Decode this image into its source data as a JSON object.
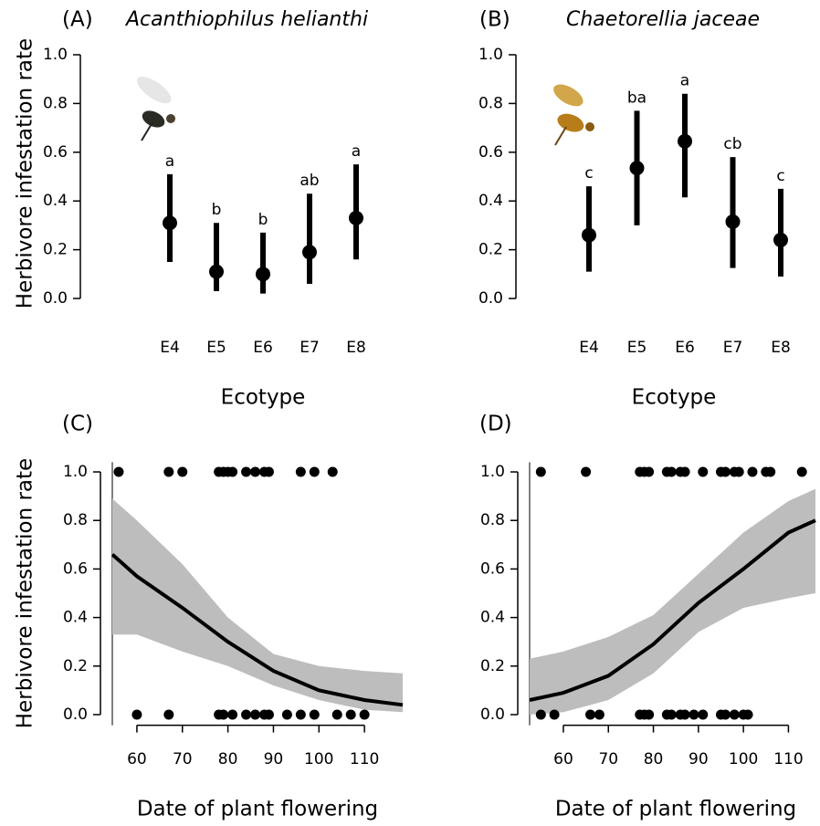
{
  "chart_data": [
    {
      "type": "errorbar",
      "panel_label": "(A)",
      "title": "Acanthiophilus helianthi",
      "ylabel": "Herbivore infestation rate",
      "xlabel": "Ecotype",
      "categories": [
        "E4",
        "E5",
        "E6",
        "E7",
        "E8"
      ],
      "values": [
        0.31,
        0.11,
        0.1,
        0.19,
        0.33
      ],
      "lower": [
        0.15,
        0.03,
        0.02,
        0.06,
        0.16
      ],
      "upper": [
        0.51,
        0.31,
        0.27,
        0.43,
        0.55
      ],
      "labels": [
        "a",
        "b",
        "b",
        "ab",
        "a"
      ],
      "color": "#000000",
      "ylim": [
        -0.04,
        1.04
      ],
      "yticks": [
        {
          "value": 0,
          "label": "0.0"
        },
        0.2,
        0.4,
        0.6,
        0.8,
        {
          "value": 1,
          "label": "1.0"
        }
      ]
    },
    {
      "type": "errorbar",
      "panel_label": "(B)",
      "title": "Chaetorellia jaceae",
      "xlabel": "Ecotype",
      "categories": [
        "E4",
        "E5",
        "E6",
        "E7",
        "E8"
      ],
      "values": [
        0.26,
        0.535,
        0.645,
        0.315,
        0.24
      ],
      "lower": [
        0.11,
        0.3,
        0.415,
        0.125,
        0.09
      ],
      "upper": [
        0.46,
        0.77,
        0.84,
        0.58,
        0.45
      ],
      "labels": [
        "c",
        "ba",
        "a",
        "cb",
        "c"
      ],
      "color": "#000000",
      "ylim": [
        -0.04,
        1.04
      ],
      "yticks": [
        {
          "value": 0,
          "label": "0.0"
        },
        0.2,
        0.4,
        0.6,
        0.8,
        {
          "value": 1,
          "label": "1.0"
        }
      ]
    },
    {
      "type": "scatter",
      "panel_label": "(C)",
      "ylabel": "Herbivore infestation rate",
      "xlabel": "Date of plant flowering",
      "scatter": {
        "x": [
          56,
          67,
          70,
          78,
          79,
          80,
          81,
          84,
          86,
          88,
          89,
          96,
          99,
          103,
          60,
          67,
          78,
          79,
          81,
          84,
          86,
          88,
          89,
          93,
          96,
          99,
          104,
          107,
          110
        ],
        "y": [
          1,
          1,
          1,
          1,
          1,
          1,
          1,
          1,
          1,
          1,
          1,
          1,
          1,
          1,
          0,
          0,
          0,
          0,
          0,
          0,
          0,
          0,
          0,
          0,
          0,
          0,
          0,
          0,
          0
        ]
      },
      "fit": {
        "x": [
          54.6,
          60,
          70,
          80,
          90,
          100,
          110,
          118.4
        ],
        "y": [
          0.66,
          0.57,
          0.44,
          0.3,
          0.18,
          0.1,
          0.06,
          0.04
        ],
        "lower": [
          0.33,
          0.33,
          0.26,
          0.2,
          0.12,
          0.06,
          0.02,
          0.01
        ],
        "upper": [
          0.89,
          0.8,
          0.62,
          0.4,
          0.25,
          0.2,
          0.18,
          0.17
        ]
      },
      "color": "#000000",
      "band_color": "#bdbdbd",
      "xlim": [
        54.6,
        118.4
      ],
      "xticks": [
        60,
        70,
        80,
        90,
        100,
        110
      ],
      "ylim": [
        -0.04,
        1.04
      ],
      "yticks": [
        {
          "value": 0,
          "label": "0.0"
        },
        0.2,
        0.4,
        0.6,
        0.8,
        {
          "value": 1,
          "label": "1.0"
        }
      ]
    },
    {
      "type": "scatter",
      "panel_label": "(D)",
      "xlabel": "Date of plant flowering",
      "scatter": {
        "x": [
          55,
          65,
          77,
          78,
          79,
          83,
          84,
          86,
          87,
          91,
          95,
          96,
          98,
          99,
          102,
          105,
          106,
          113,
          55,
          58,
          66,
          68,
          77,
          78,
          79,
          83,
          84,
          86,
          87,
          89,
          91,
          95,
          96,
          98,
          100,
          101
        ],
        "y": [
          1,
          1,
          1,
          1,
          1,
          1,
          1,
          1,
          1,
          1,
          1,
          1,
          1,
          1,
          1,
          1,
          1,
          1,
          0,
          0,
          0,
          0,
          0,
          0,
          0,
          0,
          0,
          0,
          0,
          0,
          0,
          0,
          0,
          0,
          0,
          0
        ]
      },
      "fit": {
        "x": [
          52.5,
          60,
          70,
          80,
          90,
          100,
          110,
          116
        ],
        "y": [
          0.06,
          0.09,
          0.16,
          0.29,
          0.46,
          0.6,
          0.75,
          0.8
        ],
        "lower": [
          0.0,
          0.01,
          0.06,
          0.17,
          0.34,
          0.44,
          0.48,
          0.5
        ],
        "upper": [
          0.23,
          0.26,
          0.32,
          0.41,
          0.58,
          0.75,
          0.88,
          0.93
        ]
      },
      "color": "#000000",
      "band_color": "#bdbdbd",
      "xlim": [
        52.5,
        116
      ],
      "xticks": [
        60,
        70,
        80,
        90,
        100,
        110
      ],
      "ylim": [
        -0.04,
        1.04
      ],
      "yticks": [
        {
          "value": 0,
          "label": "0.0"
        },
        0.2,
        0.4,
        0.6,
        0.8,
        {
          "value": 1,
          "label": "1.0"
        }
      ]
    }
  ]
}
